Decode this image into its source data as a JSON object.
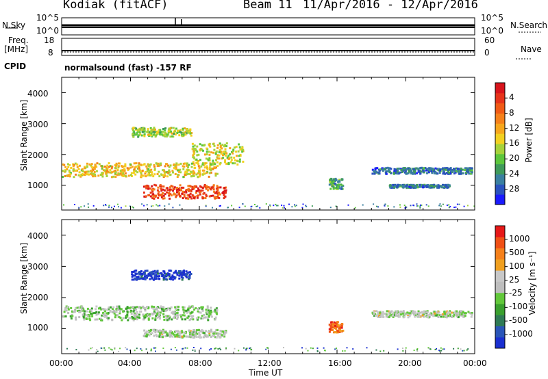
{
  "header": {
    "site": "Kodiak (fitACF)",
    "beam": "Beam 11",
    "dates": "11/Apr/2016 - 12/Apr/2016"
  },
  "strips": {
    "nsky_label": "N.Sky",
    "nsearch_label": "N.Search",
    "noise_ticks": [
      "10^5",
      "10^0"
    ],
    "freq_label": "Freq.",
    "freq_unit": "[MHz]",
    "freq_ticks": [
      "18",
      "8"
    ],
    "nave_label": "Nave",
    "nave_ticks": [
      "60",
      "0"
    ],
    "cpid_label": "CPID",
    "cpid_text": "normalsound (fast) -157 RF"
  },
  "chart_data": [
    {
      "type": "heatmap",
      "panel": "power",
      "xlabel": "",
      "ylabel": "Slant Range [km]",
      "y_ticks": [
        "1000",
        "2000",
        "3000",
        "4000"
      ],
      "ylim": [
        200,
        4500
      ],
      "xlim": [
        0,
        24
      ],
      "colorbar": {
        "label": "Power [dB]",
        "ticks": [
          "4",
          "8",
          "12",
          "16",
          "20",
          "24",
          "28"
        ],
        "colors": [
          "#1a1aff",
          "#2a52be",
          "#3a7fa0",
          "#3f9a5a",
          "#5cc63c",
          "#a6d23a",
          "#f2d020",
          "#f6a61c",
          "#f5801a",
          "#f05a15",
          "#e6331a",
          "#d8141c"
        ]
      },
      "echo_regions": [
        {
          "t0": 0.0,
          "t1": 9.0,
          "r0": 1300,
          "r1": 1750,
          "level": 0.55
        },
        {
          "t0": 4.7,
          "t1": 9.5,
          "r0": 600,
          "r1": 1050,
          "level": 0.85
        },
        {
          "t0": 4.0,
          "t1": 7.5,
          "r0": 2600,
          "r1": 2900,
          "level": 0.45
        },
        {
          "t0": 7.5,
          "t1": 10.5,
          "r0": 1700,
          "r1": 2400,
          "level": 0.5
        },
        {
          "t0": 15.5,
          "t1": 16.3,
          "r0": 900,
          "r1": 1250,
          "level": 0.3
        },
        {
          "t0": 18.0,
          "t1": 23.8,
          "r0": 1400,
          "r1": 1600,
          "level": 0.2
        },
        {
          "t0": 19.0,
          "t1": 22.5,
          "r0": 950,
          "r1": 1050,
          "level": 0.2
        }
      ]
    },
    {
      "type": "heatmap",
      "panel": "velocity",
      "xlabel": "Time UT",
      "ylabel": "Slant Range [km]",
      "x_ticks": [
        "00:00",
        "04:00",
        "08:00",
        "12:00",
        "16:00",
        "20:00",
        "00:00"
      ],
      "y_ticks": [
        "1000",
        "2000",
        "3000",
        "4000"
      ],
      "ylim": [
        200,
        4500
      ],
      "xlim": [
        0,
        24
      ],
      "colorbar": {
        "label": "Velocity [m s⁻¹]",
        "ticks": [
          "1000",
          "500",
          "100",
          "25",
          "-25",
          "-100",
          "-500",
          "-1000"
        ],
        "colors": [
          "#1a2fd0",
          "#2a55b8",
          "#2f7a55",
          "#3aa02e",
          "#62c83a",
          "#bebebe",
          "#c8c8c8",
          "#f0a020",
          "#f5801a",
          "#f05015",
          "#e61818"
        ]
      },
      "echo_regions": [
        {
          "t0": 0.0,
          "t1": 9.0,
          "r0": 1300,
          "r1": 1750,
          "level": 0.45
        },
        {
          "t0": 4.7,
          "t1": 9.5,
          "r0": 750,
          "r1": 1000,
          "level": 0.5
        },
        {
          "t0": 4.0,
          "t1": 7.5,
          "r0": 2600,
          "r1": 2900,
          "level": 0.05
        },
        {
          "t0": 15.5,
          "t1": 16.3,
          "r0": 900,
          "r1": 1250,
          "level": 0.8
        },
        {
          "t0": 18.0,
          "t1": 23.8,
          "r0": 1400,
          "r1": 1600,
          "level": 0.5
        }
      ]
    }
  ]
}
